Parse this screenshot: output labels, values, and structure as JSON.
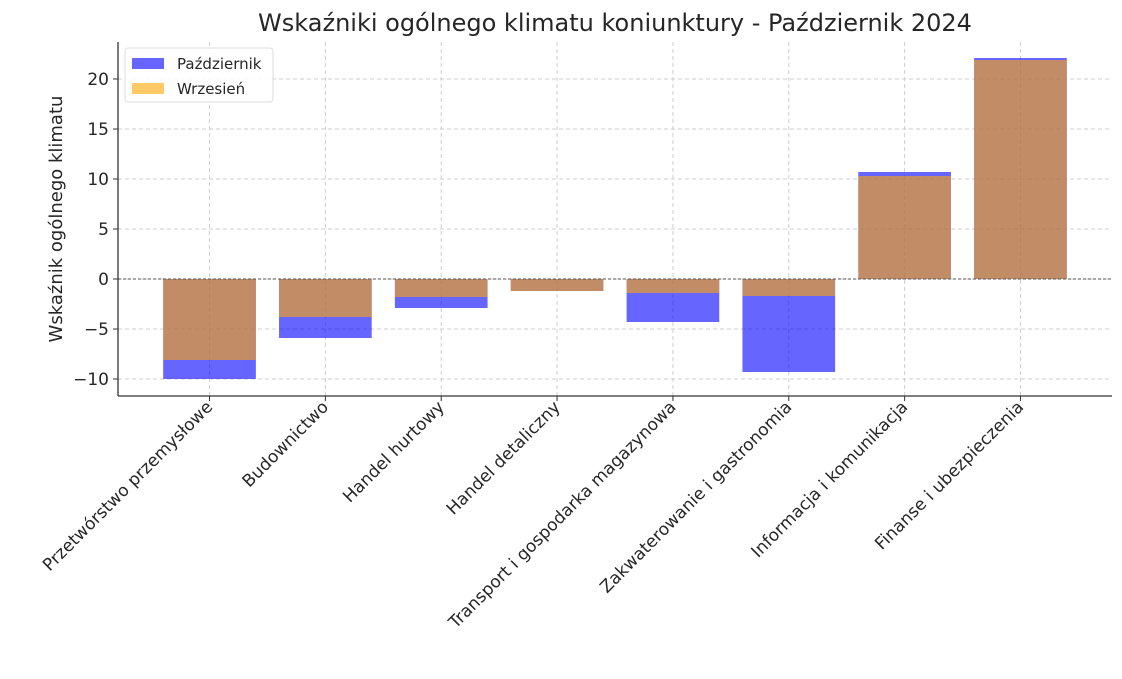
{
  "chart_data": {
    "type": "bar",
    "title": "Wskaźniki ogólnego klimatu koniunktury - Październik 2024",
    "xlabel": "",
    "ylabel": "Wskaźnik ogólnego klimatu",
    "categories": [
      "Przetwórstwo przemysłowe",
      "Budownictwo",
      "Handel hurtowy",
      "Handel detaliczny",
      "Transport i gospodarka magazynowa",
      "Zakwaterowanie i gastronomia",
      "Informacja i komunikacja",
      "Finanse i ubezpieczenia"
    ],
    "series": [
      {
        "name": "Październik",
        "color": "#0000ff",
        "values": [
          -10.0,
          -5.9,
          -2.9,
          -1.2,
          -4.3,
          -9.3,
          10.7,
          22.1
        ]
      },
      {
        "name": "Wrzesień",
        "color": "#ffa500",
        "values": [
          -8.1,
          -3.8,
          -1.8,
          -1.2,
          -1.4,
          -1.7,
          10.3,
          21.9
        ]
      }
    ],
    "ylim": [
      -11.7,
      23.7
    ],
    "yticks": [
      -10,
      -5,
      0,
      5,
      10,
      15,
      20
    ],
    "ytick_labels": [
      "−10",
      "−5",
      "0",
      "5",
      "10",
      "15",
      "20"
    ],
    "grid": true,
    "legend": "top-left",
    "overlay": true
  }
}
